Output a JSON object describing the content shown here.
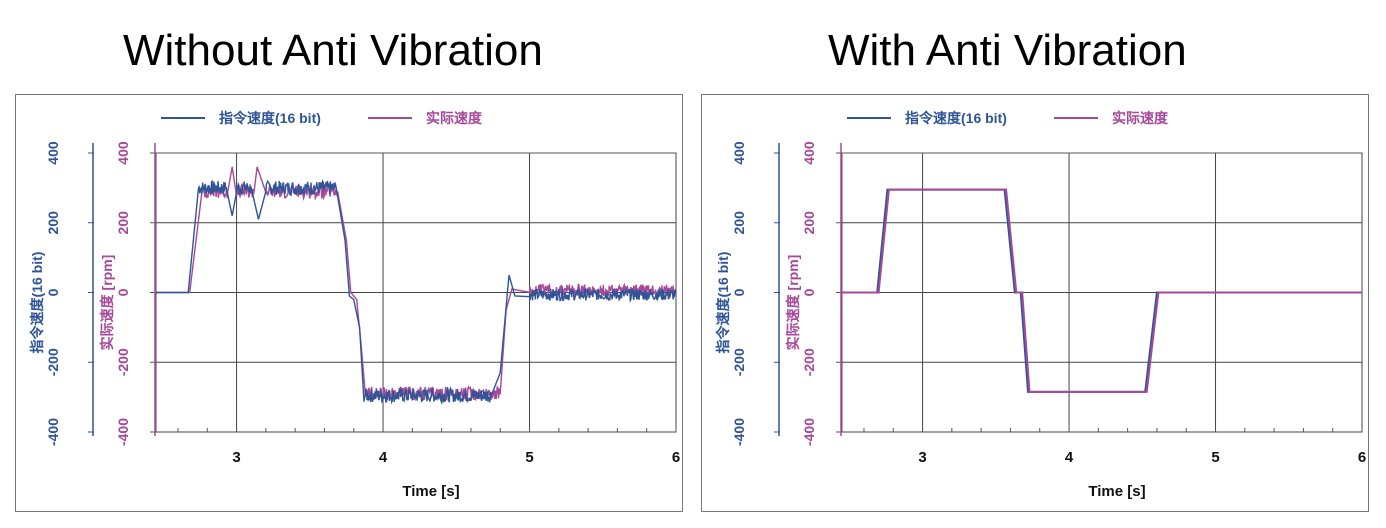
{
  "headings": {
    "left": "Without Anti Vibration",
    "right": "With Anti Vibration"
  },
  "colors": {
    "command": "#2f5597",
    "actual": "#a6499a",
    "frame": "#555555",
    "grid": "#444444"
  },
  "chart_data": [
    {
      "type": "line",
      "title": "Without Anti Vibration",
      "xlabel": "Time [s]",
      "ylabel_left": "指令速度(16 bit)",
      "ylabel_right": "实际速度 [rpm]",
      "xlim": [
        2.45,
        6.0
      ],
      "ylim": [
        -400,
        400
      ],
      "xticks": [
        "3",
        "4",
        "5",
        "6"
      ],
      "yticks": [
        "400",
        "200",
        "0",
        "-200",
        "-400"
      ],
      "grid": true,
      "legend_position": "top",
      "noisy": true,
      "series": [
        {
          "name": "指令速度(16 bit)",
          "color": "#2f5597",
          "x": [
            2.45,
            2.67,
            2.74,
            2.93,
            2.97,
            3.0,
            3.1,
            3.15,
            3.2,
            3.68,
            3.74,
            3.77,
            3.8,
            3.84,
            3.87,
            3.9,
            4.74,
            4.8,
            4.86,
            4.9,
            5.0,
            6.0
          ],
          "y": [
            0,
            0,
            300,
            300,
            220,
            300,
            300,
            210,
            300,
            300,
            150,
            -10,
            -20,
            -100,
            -295,
            -295,
            -295,
            -230,
            50,
            -10,
            0,
            0
          ]
        },
        {
          "name": "实际速度",
          "color": "#a6499a",
          "x": [
            2.45,
            2.68,
            2.76,
            2.94,
            2.97,
            3.0,
            3.12,
            3.14,
            3.2,
            3.69,
            3.75,
            3.78,
            3.82,
            3.85,
            3.88,
            3.91,
            4.8,
            4.84,
            4.88,
            5.0,
            6.0
          ],
          "y": [
            0,
            0,
            290,
            290,
            360,
            290,
            290,
            360,
            290,
            290,
            150,
            0,
            -20,
            -150,
            -290,
            -290,
            -290,
            -50,
            10,
            0,
            0
          ]
        }
      ]
    },
    {
      "type": "line",
      "title": "With Anti Vibration",
      "xlabel": "Time [s]",
      "ylabel_left": "指令速度(16 bit)",
      "ylabel_right": "实际速度 [rpm]",
      "xlim": [
        2.45,
        6.0
      ],
      "ylim": [
        -400,
        400
      ],
      "xticks": [
        "3",
        "4",
        "5",
        "6"
      ],
      "yticks": [
        "400",
        "200",
        "0",
        "-200",
        "-400"
      ],
      "grid": true,
      "legend_position": "top",
      "noisy": false,
      "series": [
        {
          "name": "指令速度(16 bit)",
          "color": "#2f5597",
          "x": [
            2.45,
            2.69,
            2.76,
            3.56,
            3.63,
            3.67,
            3.72,
            3.76,
            4.52,
            4.6,
            6.0
          ],
          "y": [
            0,
            0,
            295,
            295,
            0,
            0,
            -285,
            -285,
            -285,
            0,
            0
          ]
        },
        {
          "name": "实际速度",
          "color": "#a6499a",
          "x": [
            2.45,
            2.7,
            2.77,
            3.57,
            3.64,
            3.68,
            3.73,
            3.77,
            4.53,
            4.61,
            6.0
          ],
          "y": [
            0,
            0,
            295,
            295,
            0,
            0,
            -285,
            -285,
            -285,
            0,
            0
          ]
        }
      ]
    }
  ]
}
